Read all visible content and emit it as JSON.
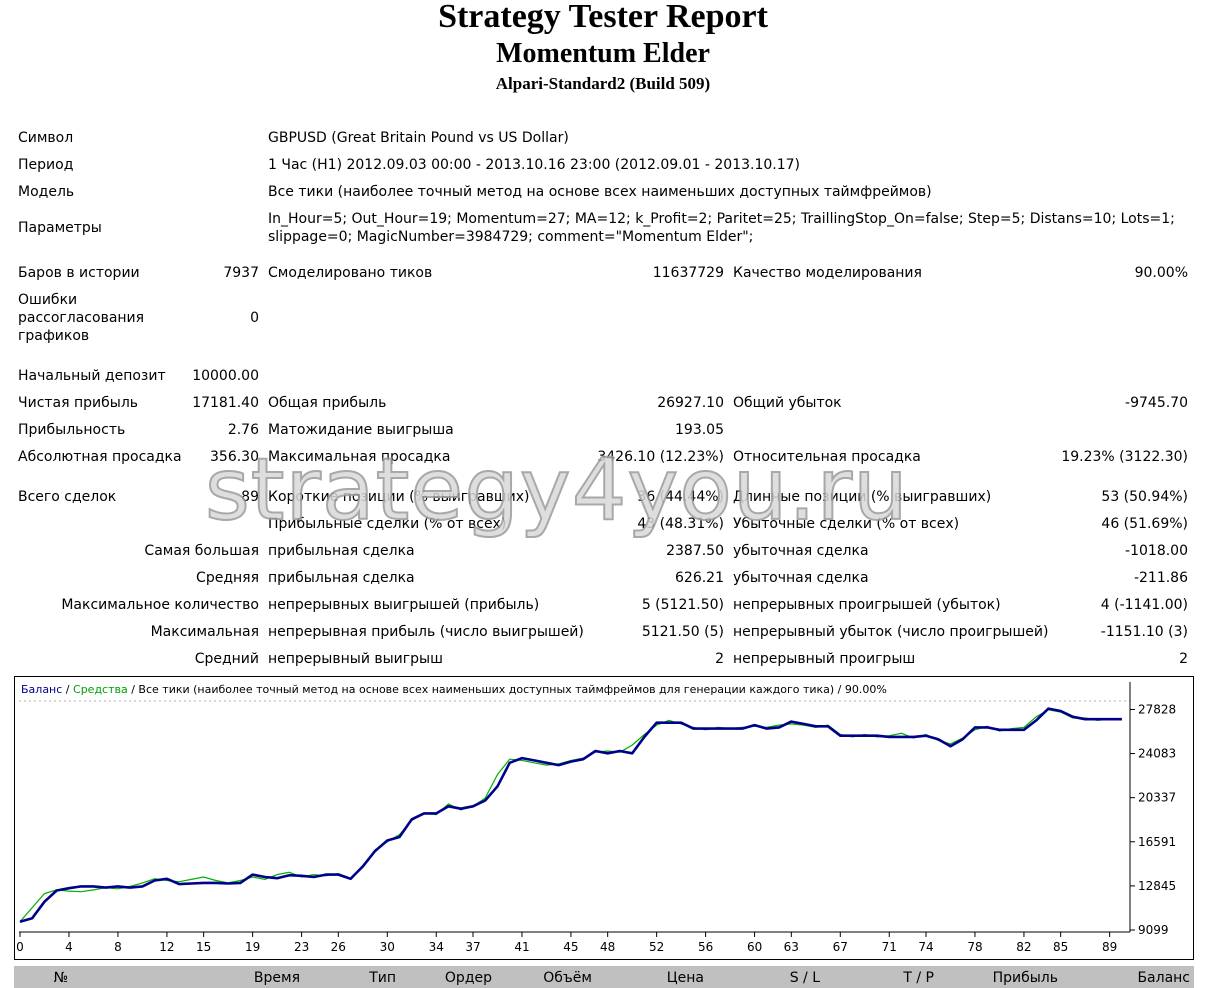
{
  "header": {
    "title": "Strategy Tester Report",
    "expert": "Momentum Elder",
    "server": "Alpari-Standard2 (Build 509)"
  },
  "info": {
    "symbol_label": "Символ",
    "symbol_value": "GBPUSD (Great Britain Pound vs US Dollar)",
    "period_label": "Период",
    "period_value": "1 Час (H1) 2012.09.03 00:00 - 2013.10.16 23:00 (2012.09.01 - 2013.10.17)",
    "model_label": "Модель",
    "model_value": "Все тики (наиболее точный метод на основе всех наименьших доступных таймфреймов)",
    "params_label": "Параметры",
    "params_line1": "In_Hour=5; Out_Hour=19; Momentum=27; MA=12; k_Profit=2; Paritet=25; TraillingStop_On=false; Step=5; Distans=10; Lots=1;",
    "params_line2": "slippage=0; MagicNumber=3984729; comment=\"Momentum Elder\";"
  },
  "stats": {
    "bars_label": "Баров в истории",
    "bars_value": "7937",
    "ticks_label": "Смоделировано тиков",
    "ticks_value": "11637729",
    "quality_label": "Качество моделирования",
    "quality_value": "90.00%",
    "errors_label_1": "Ошибки",
    "errors_label_2": "рассогласования",
    "errors_label_3": "графиков",
    "errors_value": "0",
    "deposit_label": "Начальный депозит",
    "deposit_value": "10000.00",
    "net_label": "Чистая прибыль",
    "net_value": "17181.40",
    "gross_profit_label": "Общая прибыль",
    "gross_profit_value": "26927.10",
    "gross_loss_label": "Общий убыток",
    "gross_loss_value": "-9745.70",
    "pf_label": "Прибыльность",
    "pf_value": "2.76",
    "exp_label": "Матожидание выигрыша",
    "exp_value": "193.05",
    "abs_dd_label": "Абсолютная просадка",
    "abs_dd_value": "356.30",
    "max_dd_label": "Максимальная просадка",
    "max_dd_value": "3426.10 (12.23%)",
    "rel_dd_label": "Относительная просадка",
    "rel_dd_value": "19.23% (3122.30)",
    "trades_label": "Всего сделок",
    "trades_value": "89",
    "short_label": "Короткие позиции (% выигравших)",
    "short_value": "36 (44.44%)",
    "long_label": "Длинные позиции (% выигравших)",
    "long_value": "53 (50.94%)",
    "profit_trades_label": "Прибыльные сделки (% от всех)",
    "profit_trades_value": "43 (48.31%)",
    "loss_trades_label": "Убыточные сделки (% от всех)",
    "loss_trades_value": "46 (51.69%)",
    "largest_label": "Самая большая",
    "largest_profit_label": "прибыльная сделка",
    "largest_profit_value": "2387.50",
    "largest_loss_label": "убыточная сделка",
    "largest_loss_value": "-1018.00",
    "average_label": "Средняя",
    "average_profit_label": "прибыльная сделка",
    "average_profit_value": "626.21",
    "average_loss_label": "убыточная сделка",
    "average_loss_value": "-211.86",
    "max_count_label": "Максимальное количество",
    "max_cons_wins_label": "непрерывных выигрышей (прибыль)",
    "max_cons_wins_value": "5 (5121.50)",
    "max_cons_losses_label": "непрерывных проигрышей (убыток)",
    "max_cons_losses_value": "4 (-1141.00)",
    "maximal_label": "Максимальная",
    "max_cons_profit_label": "непрерывная прибыль (число выигрышей)",
    "max_cons_profit_value": "5121.50 (5)",
    "max_cons_loss_label": "непрерывный убыток (число проигрышей)",
    "max_cons_loss_value": "-1151.10 (3)",
    "avg_cons_label": "Средний",
    "avg_cons_wins_label": "непрерывный выигрыш",
    "avg_cons_wins_value": "2",
    "avg_cons_losses_label": "непрерывный проигрыш",
    "avg_cons_losses_value": "2"
  },
  "watermark": "strategy4you.ru",
  "chart_data": {
    "type": "line",
    "legend_balance": "Баланс",
    "legend_sep1": " / ",
    "legend_equity": "Средства",
    "legend_rest": " / Все тики (наиболее точный метод на основе всех наименьших доступных таймфреймов для генерации каждого тика) / 90.00%",
    "ylim": [
      9099,
      28800
    ],
    "xlim": [
      0,
      90.5
    ],
    "x_ticks": [
      0,
      4,
      8,
      12,
      15,
      19,
      23,
      26,
      30,
      34,
      37,
      41,
      45,
      48,
      52,
      56,
      60,
      63,
      67,
      71,
      74,
      78,
      82,
      85,
      89
    ],
    "y_ticks": [
      27828,
      24083,
      20337,
      16591,
      12845,
      9099
    ],
    "series": [
      {
        "name": "Баланс",
        "color": "#00008b",
        "points": [
          [
            0,
            9800
          ],
          [
            1,
            10100
          ],
          [
            2,
            11500
          ],
          [
            3,
            12450
          ],
          [
            4,
            12650
          ],
          [
            5,
            12800
          ],
          [
            6,
            12800
          ],
          [
            7,
            12700
          ],
          [
            8,
            12800
          ],
          [
            9,
            12700
          ],
          [
            10,
            12800
          ],
          [
            11,
            13300
          ],
          [
            12,
            13450
          ],
          [
            13,
            13000
          ],
          [
            14,
            13050
          ],
          [
            15,
            13100
          ],
          [
            16,
            13100
          ],
          [
            17,
            13050
          ],
          [
            18,
            13100
          ],
          [
            19,
            13800
          ],
          [
            20,
            13600
          ],
          [
            21,
            13500
          ],
          [
            22,
            13750
          ],
          [
            23,
            13700
          ],
          [
            24,
            13600
          ],
          [
            25,
            13800
          ],
          [
            26,
            13800
          ],
          [
            27,
            13450
          ],
          [
            28,
            14500
          ],
          [
            29,
            15800
          ],
          [
            30,
            16700
          ],
          [
            31,
            17000
          ],
          [
            32,
            18500
          ],
          [
            33,
            19000
          ],
          [
            34,
            19000
          ],
          [
            35,
            19600
          ],
          [
            36,
            19400
          ],
          [
            37,
            19600
          ],
          [
            38,
            20100
          ],
          [
            39,
            21300
          ],
          [
            40,
            23300
          ],
          [
            41,
            23700
          ],
          [
            42,
            23500
          ],
          [
            43,
            23300
          ],
          [
            44,
            23100
          ],
          [
            45,
            23400
          ],
          [
            46,
            23600
          ],
          [
            47,
            24300
          ],
          [
            48,
            24100
          ],
          [
            49,
            24300
          ],
          [
            50,
            24100
          ],
          [
            51,
            25500
          ],
          [
            52,
            26700
          ],
          [
            53,
            26700
          ],
          [
            54,
            26700
          ],
          [
            55,
            26200
          ],
          [
            56,
            26200
          ],
          [
            57,
            26200
          ],
          [
            58,
            26200
          ],
          [
            59,
            26200
          ],
          [
            60,
            26500
          ],
          [
            61,
            26200
          ],
          [
            62,
            26300
          ],
          [
            63,
            26800
          ],
          [
            64,
            26600
          ],
          [
            65,
            26400
          ],
          [
            66,
            26400
          ],
          [
            67,
            25600
          ],
          [
            68,
            25600
          ],
          [
            69,
            25600
          ],
          [
            70,
            25600
          ],
          [
            71,
            25500
          ],
          [
            72,
            25500
          ],
          [
            73,
            25500
          ],
          [
            74,
            25600
          ],
          [
            75,
            25300
          ],
          [
            76,
            24700
          ],
          [
            77,
            25300
          ],
          [
            78,
            26300
          ],
          [
            79,
            26300
          ],
          [
            80,
            26100
          ],
          [
            81,
            26100
          ],
          [
            82,
            26100
          ],
          [
            83,
            26900
          ],
          [
            84,
            27900
          ],
          [
            85,
            27700
          ],
          [
            86,
            27200
          ],
          [
            87,
            27000
          ],
          [
            88,
            27000
          ],
          [
            89,
            27000
          ],
          [
            90,
            27000
          ]
        ]
      },
      {
        "name": "Средства",
        "color": "#00b000",
        "points": [
          [
            0,
            9800
          ],
          [
            1,
            11000
          ],
          [
            2,
            12200
          ],
          [
            3,
            12500
          ],
          [
            4,
            12400
          ],
          [
            5,
            12350
          ],
          [
            6,
            12500
          ],
          [
            7,
            12700
          ],
          [
            8,
            12600
          ],
          [
            9,
            12800
          ],
          [
            10,
            13100
          ],
          [
            11,
            13450
          ],
          [
            12,
            13300
          ],
          [
            13,
            13200
          ],
          [
            14,
            13400
          ],
          [
            15,
            13600
          ],
          [
            16,
            13300
          ],
          [
            17,
            13100
          ],
          [
            18,
            13300
          ],
          [
            19,
            13600
          ],
          [
            20,
            13400
          ],
          [
            21,
            13800
          ],
          [
            22,
            14000
          ],
          [
            23,
            13600
          ],
          [
            24,
            13800
          ],
          [
            25,
            13700
          ],
          [
            26,
            13900
          ],
          [
            27,
            13500
          ],
          [
            28,
            14400
          ],
          [
            29,
            15900
          ],
          [
            30,
            16600
          ],
          [
            31,
            17200
          ],
          [
            32,
            18400
          ],
          [
            33,
            19000
          ],
          [
            34,
            18900
          ],
          [
            35,
            19800
          ],
          [
            36,
            19300
          ],
          [
            37,
            19600
          ],
          [
            38,
            20300
          ],
          [
            39,
            22300
          ],
          [
            40,
            23600
          ],
          [
            41,
            23500
          ],
          [
            42,
            23300
          ],
          [
            43,
            23100
          ],
          [
            44,
            23200
          ],
          [
            45,
            23500
          ],
          [
            46,
            23700
          ],
          [
            47,
            24200
          ],
          [
            48,
            24300
          ],
          [
            49,
            24200
          ],
          [
            50,
            24800
          ],
          [
            51,
            25700
          ],
          [
            52,
            26500
          ],
          [
            53,
            26900
          ],
          [
            54,
            26600
          ],
          [
            55,
            26300
          ],
          [
            56,
            26100
          ],
          [
            57,
            26300
          ],
          [
            58,
            26200
          ],
          [
            59,
            26300
          ],
          [
            60,
            26400
          ],
          [
            61,
            26300
          ],
          [
            62,
            26500
          ],
          [
            63,
            26600
          ],
          [
            64,
            26500
          ],
          [
            65,
            26300
          ],
          [
            66,
            26500
          ],
          [
            67,
            25700
          ],
          [
            68,
            25500
          ],
          [
            69,
            25700
          ],
          [
            70,
            25500
          ],
          [
            71,
            25600
          ],
          [
            72,
            25800
          ],
          [
            73,
            25400
          ],
          [
            74,
            25700
          ],
          [
            75,
            25200
          ],
          [
            76,
            24900
          ],
          [
            77,
            25400
          ],
          [
            78,
            26100
          ],
          [
            79,
            26400
          ],
          [
            80,
            26000
          ],
          [
            81,
            26200
          ],
          [
            82,
            26300
          ],
          [
            83,
            27200
          ],
          [
            84,
            27800
          ],
          [
            85,
            27600
          ],
          [
            86,
            27100
          ],
          [
            87,
            27100
          ],
          [
            88,
            26900
          ],
          [
            89,
            27000
          ],
          [
            90,
            27000
          ]
        ]
      }
    ]
  },
  "table": {
    "headers": [
      "№",
      "Время",
      "Тип",
      "Ордер",
      "Объём",
      "Цена",
      "S / L",
      "T / P",
      "Прибыль",
      "Баланс"
    ]
  }
}
